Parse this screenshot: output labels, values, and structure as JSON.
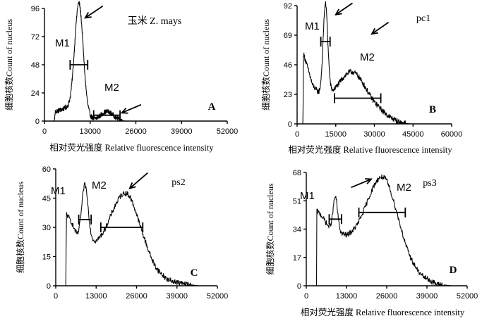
{
  "chart_data": [
    {
      "type": "line",
      "letter": "A",
      "title": "玉米 Z. mays",
      "ylabel": "细胞核数Count of nucleus",
      "xlabel": "相对荧光强度 Relative fluorescence intensity",
      "xlim": [
        0,
        52000
      ],
      "ylim": [
        0,
        96
      ],
      "yticks": [
        "0",
        "24",
        "48",
        "72",
        "96"
      ],
      "xticks": [
        "0",
        "13000",
        "26000",
        "39000",
        "52000"
      ],
      "peaks": [
        {
          "x": 9800,
          "y": 93,
          "sigma": 1200,
          "label": "M1"
        },
        {
          "x": 17800,
          "y": 7,
          "sigma": 1700,
          "label": "M2"
        }
      ],
      "baseline": [
        {
          "x": 0,
          "y": 0
        },
        {
          "x": 2800,
          "y": 0
        },
        {
          "x": 3100,
          "y": 8
        },
        {
          "x": 6000,
          "y": 11
        },
        {
          "x": 11500,
          "y": 6
        },
        {
          "x": 13500,
          "y": 2
        },
        {
          "x": 15000,
          "y": 1
        },
        {
          "x": 20500,
          "y": 1
        },
        {
          "x": 22500,
          "y": 0
        }
      ],
      "gates": [
        {
          "label": "M1",
          "x1": 7300,
          "x2": 12300,
          "y": 48
        },
        {
          "label": "M2",
          "x1": 14000,
          "x2": 21500,
          "y": 5
        }
      ],
      "arrows": [
        {
          "x": 11600,
          "y": 88,
          "dx": 5000,
          "dy": 10
        },
        {
          "x": 22000,
          "y": 7,
          "dx": 5500,
          "dy": 7
        }
      ]
    },
    {
      "type": "line",
      "letter": "B",
      "title": "pc1",
      "ylabel": "细胞核数Count of nucleus",
      "xlabel": "相对荧光强度 Relative fluorescence intensity",
      "xlim": [
        0,
        60000
      ],
      "ylim": [
        0,
        92
      ],
      "yticks": [
        "0",
        "23",
        "46",
        "69",
        "92"
      ],
      "xticks": [
        "0",
        "15000",
        "30000",
        "45000",
        "60000"
      ],
      "peaks": [
        {
          "x": 11000,
          "y": 70,
          "sigma": 900,
          "label": "M1"
        },
        {
          "x": 21500,
          "y": 25,
          "sigma": 5000,
          "label": "M2"
        }
      ],
      "baseline": [
        {
          "x": 0,
          "y": 0
        },
        {
          "x": 2300,
          "y": 0
        },
        {
          "x": 2400,
          "y": 55
        },
        {
          "x": 3500,
          "y": 48
        },
        {
          "x": 6000,
          "y": 30
        },
        {
          "x": 8500,
          "y": 23
        },
        {
          "x": 14000,
          "y": 18
        },
        {
          "x": 20000,
          "y": 16
        },
        {
          "x": 27000,
          "y": 13
        },
        {
          "x": 32000,
          "y": 10
        },
        {
          "x": 36000,
          "y": 5
        },
        {
          "x": 40000,
          "y": 1
        },
        {
          "x": 44000,
          "y": 0
        }
      ],
      "gates": [
        {
          "label": "M1",
          "x1": 9200,
          "x2": 12800,
          "y": 64
        },
        {
          "label": "M2",
          "x1": 14500,
          "x2": 32500,
          "y": 20
        }
      ],
      "arrows": [
        {
          "x": 15000,
          "y": 85,
          "dx": 6500,
          "dy": 9
        },
        {
          "x": 29000,
          "y": 70,
          "dx": 6500,
          "dy": 9
        }
      ]
    },
    {
      "type": "line",
      "letter": "C",
      "title": "ps2",
      "ylabel": "细胞核数Count of nucleus",
      "xlabel": "",
      "xlim": [
        0,
        52000
      ],
      "ylim": [
        0,
        60
      ],
      "yticks": [
        "0",
        "15",
        "30",
        "45",
        "60"
      ],
      "xticks": [
        "0",
        "13000",
        "26000",
        "39000",
        "52000"
      ],
      "peaks": [
        {
          "x": 9400,
          "y": 28,
          "sigma": 1000,
          "label": "M1"
        },
        {
          "x": 22500,
          "y": 27,
          "sigma": 4200,
          "label": "M2"
        }
      ],
      "baseline": [
        {
          "x": 0,
          "y": 0
        },
        {
          "x": 3300,
          "y": 0
        },
        {
          "x": 3400,
          "y": 37
        },
        {
          "x": 5000,
          "y": 33
        },
        {
          "x": 7000,
          "y": 25
        },
        {
          "x": 10500,
          "y": 23
        },
        {
          "x": 13000,
          "y": 21
        },
        {
          "x": 18000,
          "y": 22
        },
        {
          "x": 24000,
          "y": 20
        },
        {
          "x": 29000,
          "y": 14
        },
        {
          "x": 32000,
          "y": 8
        },
        {
          "x": 36000,
          "y": 3
        },
        {
          "x": 41000,
          "y": 1
        },
        {
          "x": 46000,
          "y": 0
        }
      ],
      "gates": [
        {
          "label": "M1",
          "x1": 7400,
          "x2": 11400,
          "y": 34
        },
        {
          "label": "M2",
          "x1": 14500,
          "x2": 28000,
          "y": 30
        }
      ],
      "arrows": [
        {
          "x": 23800,
          "y": 50,
          "dx": 5800,
          "dy": 8
        },
        {
          "x": 0,
          "y": 0,
          "dx": 0,
          "dy": 0,
          "hidden": true
        }
      ]
    },
    {
      "type": "line",
      "letter": "D",
      "title": "ps3",
      "ylabel": "细胞核数Count of nucleus",
      "xlabel": "相对荧光强度 Relative fluorescence intensity",
      "xlim": [
        0,
        52000
      ],
      "ylim": [
        0,
        68
      ],
      "yticks": [
        "0",
        "17",
        "34",
        "51",
        "68"
      ],
      "xticks": [
        "0",
        "13000",
        "26000",
        "39000",
        "52000"
      ],
      "peaks": [
        {
          "x": 9400,
          "y": 20,
          "sigma": 700,
          "label": "M1"
        },
        {
          "x": 24500,
          "y": 36,
          "sigma": 4500,
          "label": "M2"
        }
      ],
      "baseline": [
        {
          "x": 0,
          "y": 0
        },
        {
          "x": 3300,
          "y": 0
        },
        {
          "x": 3400,
          "y": 45
        },
        {
          "x": 5000,
          "y": 42
        },
        {
          "x": 7000,
          "y": 36
        },
        {
          "x": 10500,
          "y": 32
        },
        {
          "x": 13000,
          "y": 29
        },
        {
          "x": 19000,
          "y": 30
        },
        {
          "x": 26000,
          "y": 29
        },
        {
          "x": 30000,
          "y": 22
        },
        {
          "x": 33000,
          "y": 14
        },
        {
          "x": 37000,
          "y": 6
        },
        {
          "x": 42000,
          "y": 1
        },
        {
          "x": 47000,
          "y": 0
        }
      ],
      "gates": [
        {
          "label": "M1",
          "x1": 7400,
          "x2": 11400,
          "y": 40
        },
        {
          "label": "M2",
          "x1": 17000,
          "x2": 32000,
          "y": 44
        }
      ],
      "arrows": [
        {
          "x": 21000,
          "y": 64,
          "dx": -6500,
          "dy": -5
        }
      ]
    }
  ]
}
